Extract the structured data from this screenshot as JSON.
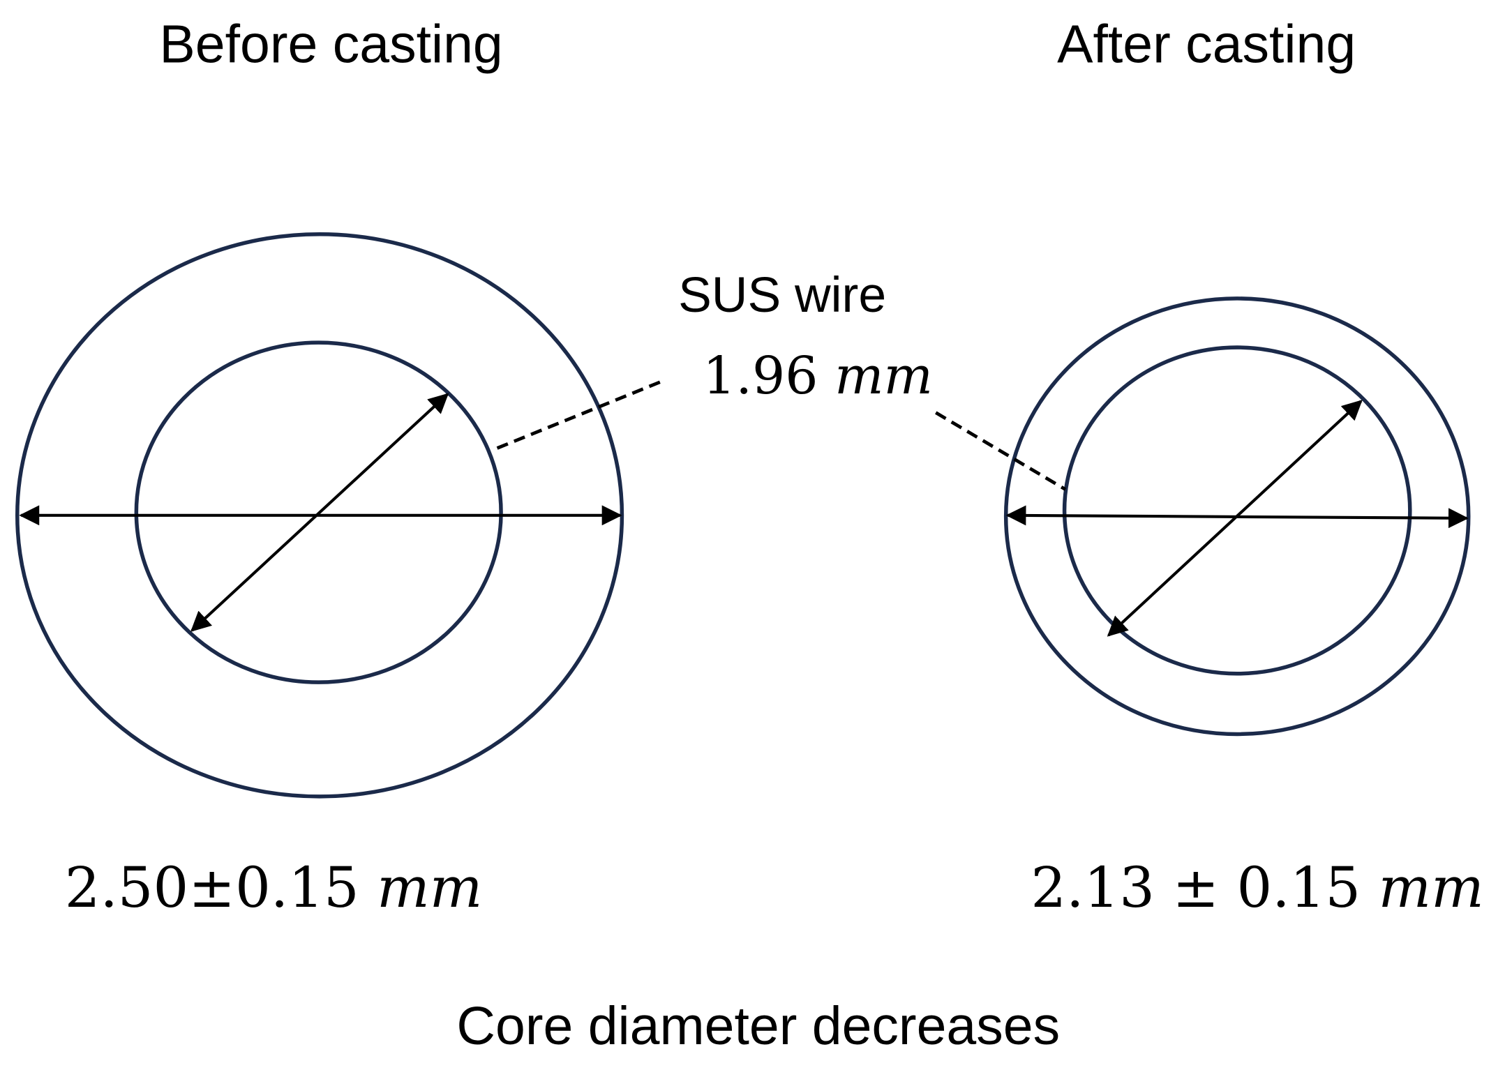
{
  "before": {
    "title": "Before casting",
    "value": "2.50±0.15",
    "unit": "mm"
  },
  "after": {
    "title": "After casting",
    "value": "2.13 ± 0.15",
    "unit": "mm"
  },
  "wire": {
    "label": "SUS wire",
    "value": "1.96",
    "unit": "mm"
  },
  "caption": "Core diameter decreases"
}
